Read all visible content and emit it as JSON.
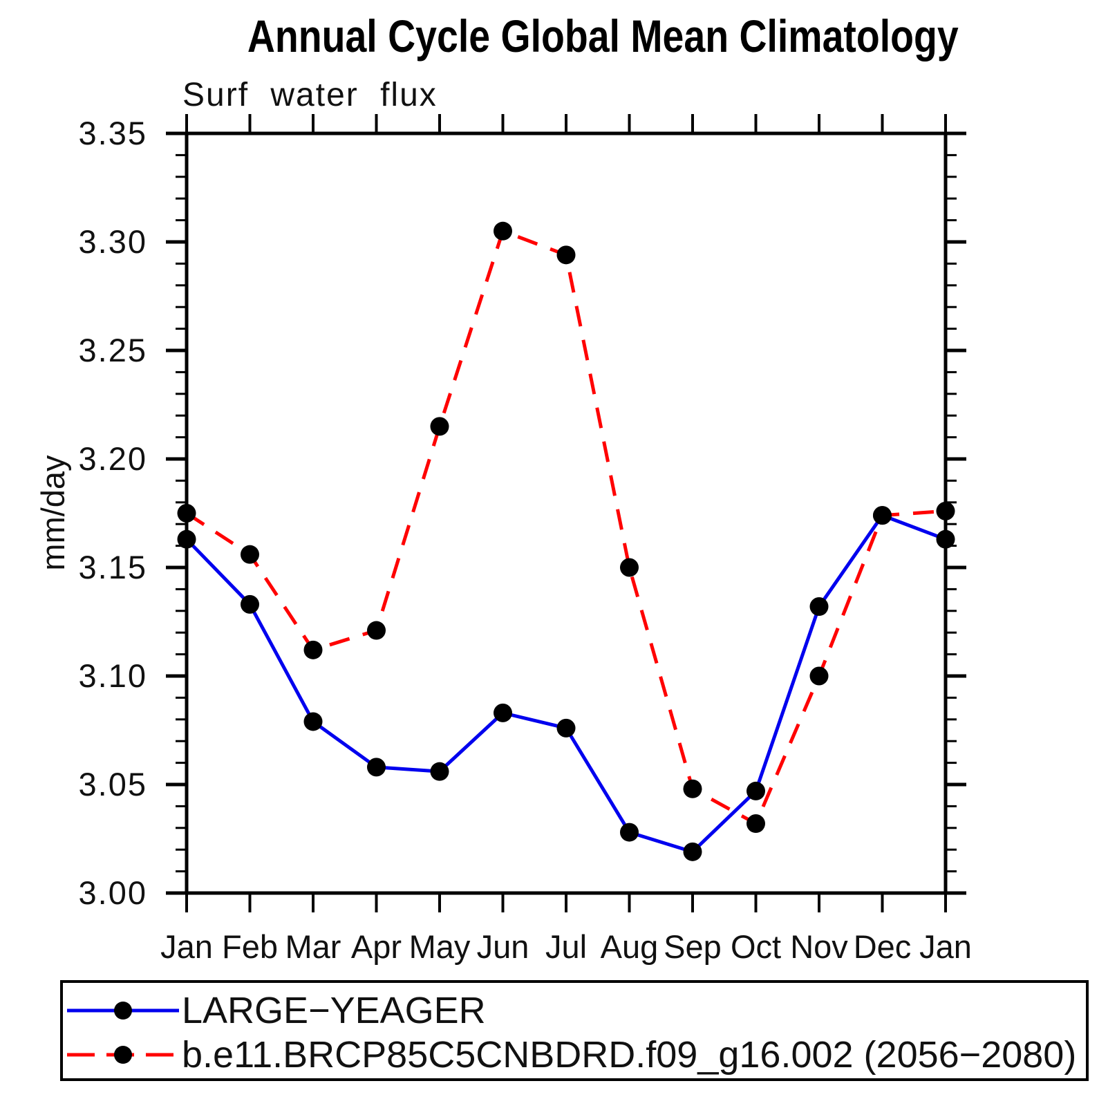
{
  "chart": {
    "title": "Annual Cycle Global Mean Climatology",
    "subtitle": "Surf water flux",
    "ylabel": "mm/day"
  },
  "chart_data": {
    "type": "line",
    "title": "Annual Cycle Global Mean Climatology",
    "subtitle": "Surf water flux",
    "xlabel": "",
    "ylabel": "mm/day",
    "categories": [
      "Jan",
      "Feb",
      "Mar",
      "Apr",
      "May",
      "Jun",
      "Jul",
      "Aug",
      "Sep",
      "Oct",
      "Nov",
      "Dec",
      "Jan"
    ],
    "series": [
      {
        "name": "LARGE−YEAGER",
        "color": "#0000ee",
        "line_style": "solid",
        "marker": "circle",
        "marker_color": "#000000",
        "values": [
          3.163,
          3.133,
          3.079,
          3.058,
          3.056,
          3.083,
          3.076,
          3.028,
          3.019,
          3.047,
          3.132,
          3.174,
          3.163
        ]
      },
      {
        "name": "b.e11.BRCP85C5CNBDRD.f09_g16.002 (2056−2080)",
        "color": "#ff0000",
        "line_style": "dashed",
        "marker": "circle",
        "marker_color": "#000000",
        "values": [
          3.175,
          3.156,
          3.112,
          3.121,
          3.215,
          3.305,
          3.294,
          3.15,
          3.048,
          3.032,
          3.1,
          3.174,
          3.176
        ]
      }
    ],
    "ylim": [
      3.0,
      3.35
    ],
    "ytick_labels": [
      "3.00",
      "3.05",
      "3.10",
      "3.15",
      "3.20",
      "3.25",
      "3.30",
      "3.35"
    ],
    "ytick_step": 0.05,
    "yminor_step": 0.01,
    "grid": false,
    "legend_position": "bottom",
    "frame_color": "#000000"
  }
}
